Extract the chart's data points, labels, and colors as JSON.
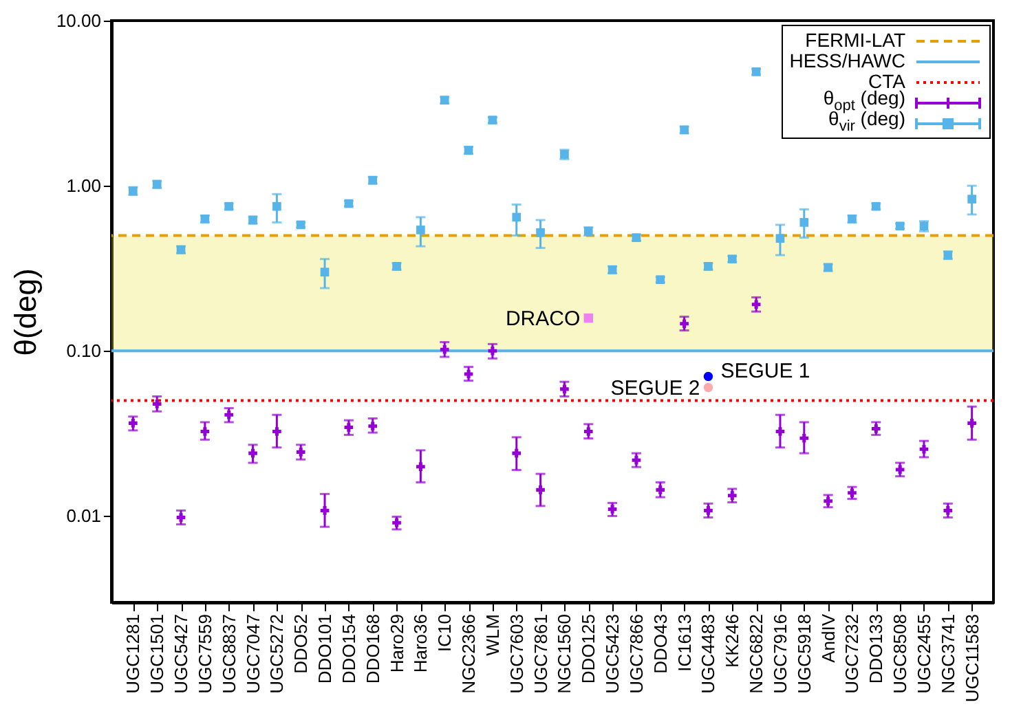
{
  "chart_data": {
    "type": "scatter",
    "ylabel": "θ(deg)",
    "log": "y",
    "grid": false,
    "legend": "top right",
    "categories": [
      "UGC1281",
      "UGC1501",
      "UGC5427",
      "UGC7559",
      "UGC8837",
      "UGC7047",
      "UGC5272",
      "DDO52",
      "DDO101",
      "DDO154",
      "DDO168",
      "Haro29",
      "Haro36",
      "IC10",
      "NGC2366",
      "WLM",
      "UGC7603",
      "UGC7861",
      "NGC1560",
      "DDO125",
      "UGC5423",
      "UGC7866",
      "DDO43",
      "IC1613",
      "UGC4483",
      "KK246",
      "NGC6822",
      "UGC7916",
      "UGC5918",
      "AndIV",
      "UGC7232",
      "DDO133",
      "UGC8508",
      "UGC2455",
      "NGC3741",
      "UGC11583"
    ],
    "ylim": [
      0.003,
      10
    ],
    "yticks": [
      0.01,
      {
        "value": 0.1,
        "label": "0.10"
      },
      {
        "value": 1,
        "label": "1.00"
      },
      {
        "value": 10,
        "label": "10.00"
      }
    ],
    "series": [
      {
        "name": "θ$_{opt}$ (deg)",
        "color": "#9400d3",
        "marker": "cross",
        "values": [
          0.0365,
          0.0477,
          0.0098,
          0.0325,
          0.041,
          0.024,
          0.0325,
          0.0244,
          0.0108,
          0.0344,
          0.035,
          0.0091,
          0.0199,
          0.102,
          0.0724,
          0.1,
          0.024,
          0.0144,
          0.0587,
          0.0325,
          0.011,
          0.0218,
          0.0144,
          0.146,
          0.0108,
          0.0133,
          0.191,
          0.0325,
          0.0296,
          0.0123,
          0.0138,
          0.0338,
          0.0191,
          0.0254,
          0.0108,
          0.0365
        ],
        "errors": [
          [
            0.033,
            0.04
          ],
          [
            0.043,
            0.053
          ],
          [
            0.0089,
            0.0108
          ],
          [
            0.029,
            0.037
          ],
          [
            0.037,
            0.045
          ],
          [
            0.021,
            0.027
          ],
          [
            0.026,
            0.041
          ],
          [
            0.022,
            0.027
          ],
          [
            0.0086,
            0.0136
          ],
          [
            0.031,
            0.038
          ],
          [
            0.032,
            0.039
          ],
          [
            0.0083,
            0.0099
          ],
          [
            0.016,
            0.025
          ],
          [
            0.092,
            0.113
          ],
          [
            0.066,
            0.08
          ],
          [
            0.09,
            0.11
          ],
          [
            0.019,
            0.03
          ],
          [
            0.0115,
            0.018
          ],
          [
            0.053,
            0.065
          ],
          [
            0.0295,
            0.036
          ],
          [
            0.01,
            0.012
          ],
          [
            0.0198,
            0.024
          ],
          [
            0.013,
            0.016
          ],
          [
            0.133,
            0.161
          ],
          [
            0.0098,
            0.0119
          ],
          [
            0.0121,
            0.0146
          ],
          [
            0.173,
            0.211
          ],
          [
            0.026,
            0.041
          ],
          [
            0.024,
            0.037
          ],
          [
            0.0113,
            0.0134
          ],
          [
            0.0127,
            0.015
          ],
          [
            0.031,
            0.037
          ],
          [
            0.0174,
            0.021
          ],
          [
            0.0227,
            0.0285
          ],
          [
            0.0098,
            0.0119
          ],
          [
            0.029,
            0.046
          ]
        ]
      },
      {
        "name": "θ$_{vir}$ (deg)",
        "color": "#56b4e9",
        "marker": "square",
        "values": [
          0.93,
          1.02,
          0.41,
          0.63,
          0.75,
          0.62,
          0.75,
          0.58,
          0.3,
          0.78,
          1.08,
          0.325,
          0.54,
          3.3,
          1.64,
          2.5,
          0.645,
          0.52,
          1.55,
          0.53,
          0.31,
          0.485,
          0.27,
          2.18,
          0.325,
          0.36,
          4.9,
          0.48,
          0.6,
          0.32,
          0.63,
          0.75,
          0.57,
          0.57,
          0.38,
          0.83
        ],
        "errors": [
          0.05,
          0.05,
          0.02,
          0.03,
          0.03,
          0.03,
          [
            0.6,
            0.89
          ],
          0.02,
          [
            0.24,
            0.36
          ],
          0.03,
          0.05,
          0.015,
          [
            0.43,
            0.645
          ],
          0.15,
          0.08,
          0.1,
          [
            0.5,
            0.77
          ],
          [
            0.42,
            0.62
          ],
          0.1,
          0.03,
          0.015,
          0.02,
          0.01,
          0.1,
          0.015,
          0.015,
          0.2,
          [
            0.38,
            0.58
          ],
          [
            0.485,
            0.72
          ],
          0.015,
          0.03,
          0.03,
          0.02,
          0.04,
          0.02,
          [
            0.67,
            1.0
          ]
        ]
      },
      {
        "name": "DRACO",
        "color": "#ee82ee",
        "marker": "square",
        "x": [
          "DDO125"
        ],
        "values": [
          0.158
        ]
      },
      {
        "name": "SEGUE 1",
        "color": "#0000ff",
        "marker": "circle",
        "x": [
          "UGC4483"
        ],
        "values": [
          0.07
        ]
      },
      {
        "name": "SEGUE 2",
        "color": "#ffaaaa",
        "marker": "circle",
        "x": [
          "UGC4483"
        ],
        "values": [
          0.06
        ]
      }
    ],
    "ref_lines": [
      {
        "axis": "y",
        "value": 0.5,
        "label": "FERMI-LAT",
        "color": "#e69f00",
        "line_style": "dashed"
      },
      {
        "axis": "y",
        "value": 0.1,
        "label": "HESS/HAWC",
        "color": "#56b4e9",
        "line_style": "solid"
      },
      {
        "axis": "y",
        "value": 0.05,
        "label": "CTA",
        "color": "#ff0000",
        "line_style": "dotted"
      }
    ],
    "bands": [
      {
        "axis": "y",
        "from": 0.1,
        "to": 0.5,
        "color": "#f0e442"
      }
    ]
  }
}
